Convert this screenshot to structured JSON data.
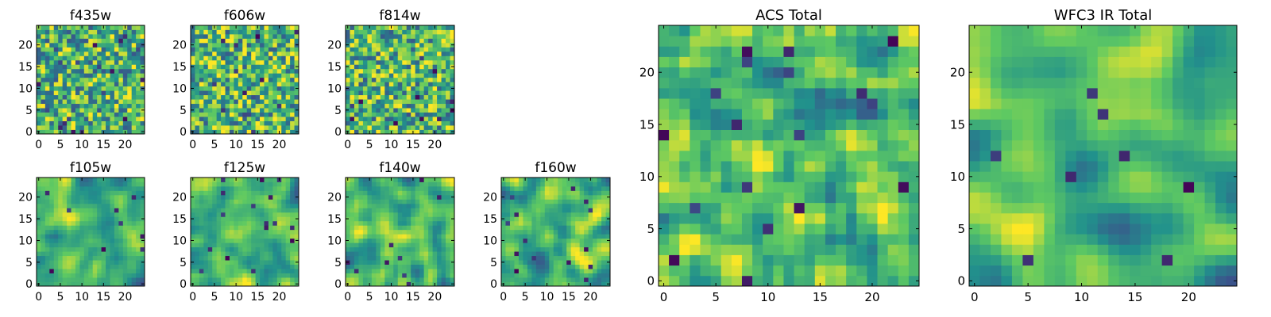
{
  "figure": {
    "colormap": [
      "#440154",
      "#3b528b",
      "#21918c",
      "#5ec962",
      "#fde725"
    ]
  },
  "chart_data": [
    {
      "type": "heatmap",
      "title": "f435w",
      "grid_size": 25,
      "xlim": [
        0,
        24
      ],
      "ylim": [
        0,
        24
      ],
      "xticks": [
        0,
        5,
        10,
        15,
        20
      ],
      "yticks": [
        0,
        5,
        10,
        15,
        20
      ],
      "seed": 11,
      "smooth": 0,
      "background": 0.65
    },
    {
      "type": "heatmap",
      "title": "f606w",
      "grid_size": 25,
      "xlim": [
        0,
        24
      ],
      "ylim": [
        0,
        24
      ],
      "xticks": [
        0,
        5,
        10,
        15,
        20
      ],
      "yticks": [
        0,
        5,
        10,
        15,
        20
      ],
      "seed": 23,
      "smooth": 0,
      "background": 0.67
    },
    {
      "type": "heatmap",
      "title": "f814w",
      "grid_size": 25,
      "xlim": [
        0,
        24
      ],
      "ylim": [
        0,
        24
      ],
      "xticks": [
        0,
        5,
        10,
        15,
        20
      ],
      "yticks": [
        0,
        5,
        10,
        15,
        20
      ],
      "seed": 37,
      "smooth": 0,
      "background": 0.66
    },
    {
      "type": "heatmap",
      "title": "f105w",
      "grid_size": 25,
      "xlim": [
        0,
        24
      ],
      "ylim": [
        0,
        24
      ],
      "xticks": [
        0,
        5,
        10,
        15,
        20
      ],
      "yticks": [
        0,
        5,
        10,
        15,
        20
      ],
      "seed": 41,
      "smooth": 2,
      "background": 0.62
    },
    {
      "type": "heatmap",
      "title": "f125w",
      "grid_size": 25,
      "xlim": [
        0,
        24
      ],
      "ylim": [
        0,
        24
      ],
      "xticks": [
        0,
        5,
        10,
        15,
        20
      ],
      "yticks": [
        0,
        5,
        10,
        15,
        20
      ],
      "seed": 53,
      "smooth": 2,
      "background": 0.66
    },
    {
      "type": "heatmap",
      "title": "f140w",
      "grid_size": 25,
      "xlim": [
        0,
        24
      ],
      "ylim": [
        0,
        24
      ],
      "xticks": [
        0,
        5,
        10,
        15,
        20
      ],
      "yticks": [
        0,
        5,
        10,
        15,
        20
      ],
      "seed": 67,
      "smooth": 2,
      "background": 0.68
    },
    {
      "type": "heatmap",
      "title": "f160w",
      "grid_size": 25,
      "xlim": [
        0,
        24
      ],
      "ylim": [
        0,
        24
      ],
      "xticks": [
        0,
        5,
        10,
        15,
        20
      ],
      "yticks": [
        0,
        5,
        10,
        15,
        20
      ],
      "seed": 79,
      "smooth": 2,
      "background": 0.66
    },
    {
      "type": "heatmap",
      "title": "ACS Total",
      "grid_size": 25,
      "xlim": [
        0,
        24
      ],
      "ylim": [
        0,
        24
      ],
      "xticks": [
        0,
        5,
        10,
        15,
        20
      ],
      "yticks": [
        0,
        5,
        10,
        15,
        20
      ],
      "seed": 97,
      "smooth": 1,
      "background": 0.68
    },
    {
      "type": "heatmap",
      "title": "WFC3 IR Total",
      "grid_size": 25,
      "xlim": [
        0,
        24
      ],
      "ylim": [
        0,
        24
      ],
      "xticks": [
        0,
        5,
        10,
        15,
        20
      ],
      "yticks": [
        0,
        5,
        10,
        15,
        20
      ],
      "seed": 131,
      "smooth": 3,
      "background": 0.63
    }
  ]
}
